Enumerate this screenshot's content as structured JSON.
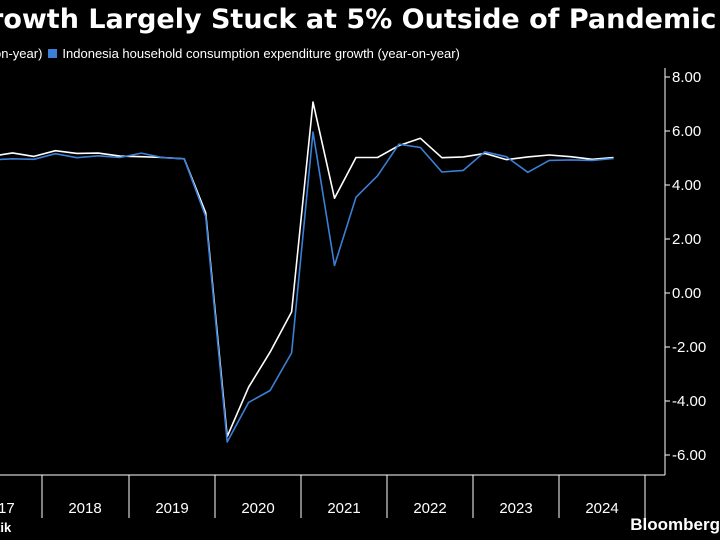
{
  "title": "rowth Largely Stuck at 5% Outside of Pandemic",
  "legend": [
    {
      "label": "on-year)",
      "color": "#ffffff"
    },
    {
      "label": "Indonesia household consumption expenditure growth (year-on-year)",
      "color": "#3b7fd6"
    }
  ],
  "source": "tik",
  "brand": "Bloomberg",
  "chart_data": {
    "type": "line",
    "title": "rowth Largely Stuck at 5% Outside of Pandemic",
    "x": [
      "2017Q3",
      "2017Q4",
      "2018Q1",
      "2018Q2",
      "2018Q3",
      "2018Q4",
      "2019Q1",
      "2019Q2",
      "2019Q3",
      "2019Q4",
      "2020Q1",
      "2020Q2",
      "2020Q3",
      "2020Q4",
      "2021Q1",
      "2021Q2",
      "2021Q3",
      "2021Q4",
      "2022Q1",
      "2022Q2",
      "2022Q3",
      "2022Q4",
      "2023Q1",
      "2023Q2",
      "2023Q3",
      "2023Q4",
      "2024Q1",
      "2024Q2",
      "2024Q3",
      "2024Q4"
    ],
    "series": [
      {
        "name": "",
        "color": "#ffffff",
        "values": [
          5.06,
          5.19,
          5.06,
          5.27,
          5.17,
          5.18,
          5.07,
          5.05,
          5.02,
          4.97,
          2.97,
          -5.32,
          -3.49,
          -2.19,
          -0.7,
          7.07,
          3.51,
          5.02,
          5.02,
          5.46,
          5.73,
          5.01,
          5.04,
          5.17,
          4.94,
          5.04,
          5.11,
          5.05,
          4.95,
          5.02
        ]
      },
      {
        "name": "Indonesia household consumption expenditure growth (year-on-year)",
        "color": "#3b7fd6",
        "values": [
          4.93,
          4.97,
          4.95,
          5.16,
          5.01,
          5.08,
          5.02,
          5.18,
          5.01,
          4.97,
          2.83,
          -5.52,
          -4.05,
          -3.61,
          -2.22,
          5.96,
          1.02,
          3.55,
          4.34,
          5.51,
          5.39,
          4.48,
          4.54,
          5.23,
          5.05,
          4.47,
          4.91,
          4.93,
          4.91,
          4.98
        ]
      }
    ],
    "x_tick_labels": [
      "17",
      "2018",
      "2019",
      "2020",
      "2021",
      "2022",
      "2023",
      "2024"
    ],
    "y_tick_labels": [
      "8.00",
      "6.00",
      "4.00",
      "2.00",
      "0.00",
      "-2.00",
      "-4.00",
      "-6.00"
    ],
    "y_ticks": [
      8,
      6,
      4,
      2,
      0,
      -2,
      -4,
      -6
    ],
    "ylim": [
      -6.3,
      8.2
    ],
    "y_axis_position": "right",
    "grid": false,
    "legend_position": "top-left"
  }
}
